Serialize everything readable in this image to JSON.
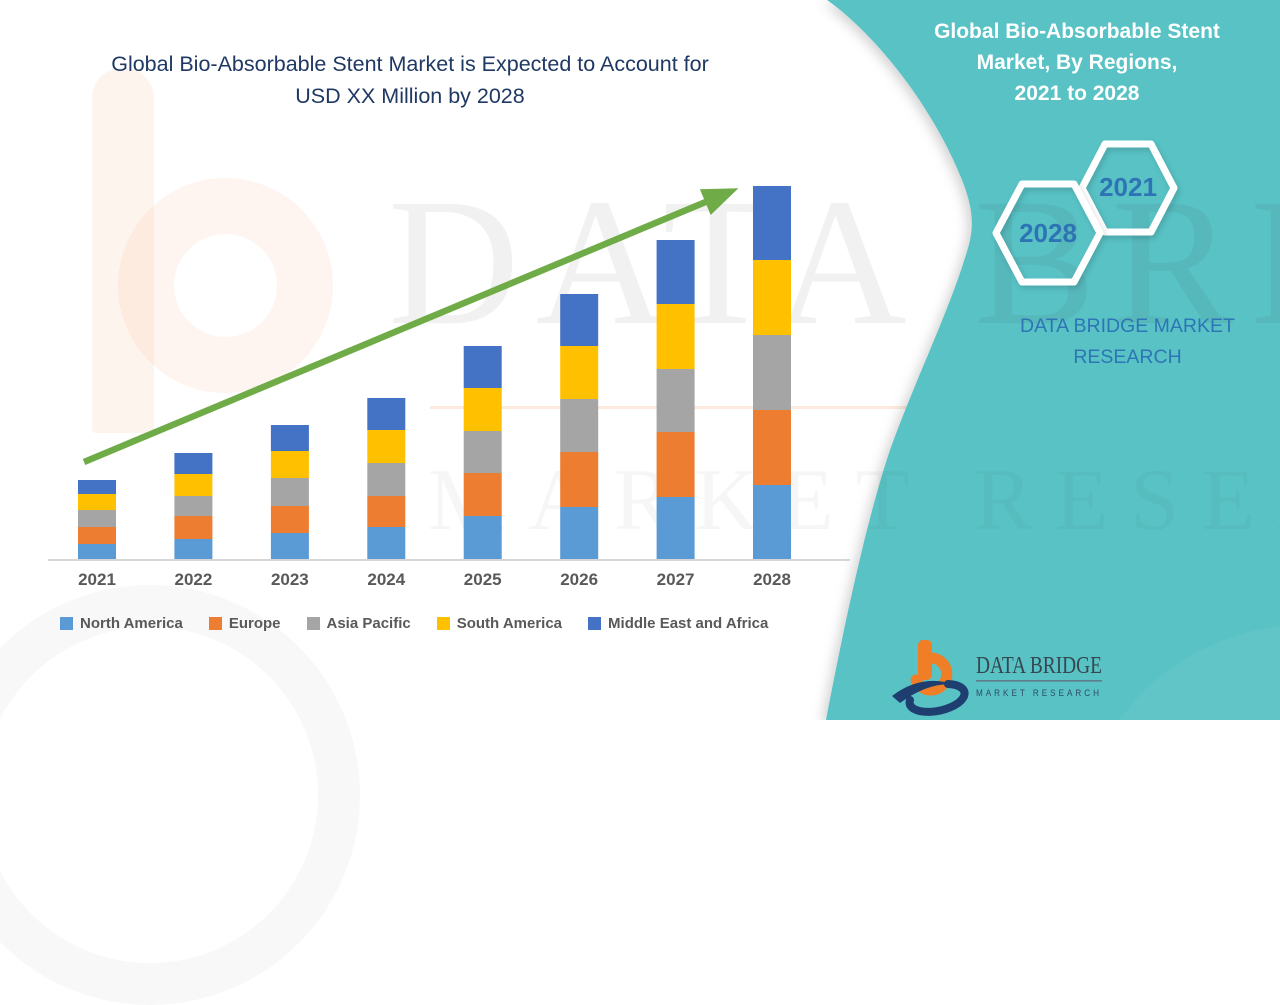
{
  "main_title": {
    "line1": "Global Bio-Absorbable Stent Market is Expected to Account for",
    "line2": "USD XX Million by 2028",
    "color": "#1F3864"
  },
  "side_panel": {
    "background_color": "#59C2C5",
    "title_line1": "Global Bio-Absorbable Stent",
    "title_line2": "Market, By Regions,",
    "title_line3": "2021 to 2028",
    "hexagon_back_label": "2028",
    "hexagon_front_label": "2021",
    "hex_label_color": "#2E74B5",
    "caption_line1": "DATA BRIDGE MARKET",
    "caption_line2": "RESEARCH",
    "caption_color": "#2E75B6"
  },
  "watermark": {
    "big_text": "DATA BRIDGE",
    "sub_text": "MARKET RESEARCH"
  },
  "logo": {
    "name_text": "DATA BRIDGE",
    "sub_text": "MARKET RESEARCH",
    "orange": "#F07E26",
    "navy": "#1F3E70"
  },
  "chart_data": {
    "type": "bar",
    "stacked": true,
    "title": "Global Bio-Absorbable Stent Market is Expected to Account for USD XX Million by 2028",
    "xlabel": "",
    "ylabel": "",
    "y_axis_visible": false,
    "grid": false,
    "legend_position": "bottom",
    "categories": [
      "2021",
      "2022",
      "2023",
      "2024",
      "2025",
      "2026",
      "2027",
      "2028"
    ],
    "series": [
      {
        "name": "North America",
        "color": "#5B9BD5",
        "values": [
          16,
          21,
          27,
          33,
          44,
          53,
          63,
          75
        ]
      },
      {
        "name": "Europe",
        "color": "#ED7D31",
        "values": [
          17,
          23,
          27,
          31,
          43,
          55,
          65,
          75
        ]
      },
      {
        "name": "Asia Pacific",
        "color": "#A5A5A5",
        "values": [
          17,
          20,
          28,
          33,
          42,
          53,
          63,
          75
        ]
      },
      {
        "name": "South America",
        "color": "#FFC000",
        "values": [
          16,
          22,
          27,
          33,
          43,
          53,
          65,
          75
        ]
      },
      {
        "name": "Middle East and Africa",
        "color": "#4472C4",
        "values": [
          14,
          21,
          26,
          32,
          42,
          52,
          64,
          74
        ]
      }
    ],
    "totals_relative": [
      80,
      107,
      135,
      162,
      214,
      266,
      320,
      374
    ],
    "trend_arrow": {
      "show": true,
      "color": "#6FAC47"
    },
    "axis_line_color": "#D6D6D6",
    "tick_color": "#595959"
  }
}
